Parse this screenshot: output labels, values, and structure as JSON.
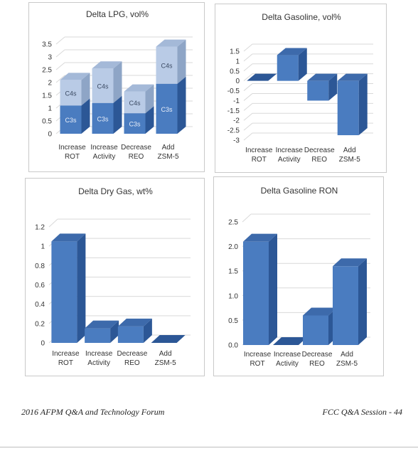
{
  "footer": {
    "left": "2016 AFPM Q&A and Technology Forum",
    "right": "FCC Q&A Session - 44"
  },
  "colors": {
    "bar_front": "#4a7cc0",
    "bar_side": "#2c5796",
    "bar_top": "#3d6aab",
    "c4_front": "#b9cbe6",
    "c4_side": "#8ea5c6",
    "c4_top": "#a4b9d8",
    "grid": "#d9d9d9",
    "text": "#333333"
  },
  "chart_data": [
    {
      "type": "bar",
      "stacked": true,
      "title": "Delta LPG, vol%",
      "categories": [
        [
          "Increase",
          "ROT"
        ],
        [
          "Increase",
          "Activity"
        ],
        [
          "Decrease",
          "REO"
        ],
        [
          "Add",
          "ZSM-5"
        ]
      ],
      "series": [
        {
          "name": "C3s",
          "values": [
            1.1,
            1.2,
            0.8,
            1.95
          ]
        },
        {
          "name": "C4s",
          "values": [
            1.0,
            1.35,
            0.85,
            1.45
          ]
        }
      ],
      "ylim": [
        0,
        3.5
      ],
      "yticks": [
        0,
        0.5,
        1,
        1.5,
        2,
        2.5,
        3,
        3.5
      ],
      "ytick_labels": [
        "0",
        "0.5",
        "1",
        "1.5",
        "2",
        "2.5",
        "3",
        "3.5"
      ],
      "grid": true
    },
    {
      "type": "bar",
      "title": "Delta Gasoline, vol%",
      "categories": [
        [
          "Increase",
          "ROT"
        ],
        [
          "Increase",
          "Activity"
        ],
        [
          "Decrease",
          "REO"
        ],
        [
          "Add",
          "ZSM-5"
        ]
      ],
      "values": [
        0.0,
        1.3,
        -1.0,
        -2.75
      ],
      "ylim": [
        -3,
        1.5
      ],
      "yticks": [
        1.5,
        1,
        0.5,
        0,
        -0.5,
        -1,
        -1.5,
        -2,
        -2.5,
        -3
      ],
      "ytick_labels": [
        "1.5",
        "1",
        "0.5",
        "0",
        "-0.5",
        "-1",
        "-1.5",
        "-2",
        "-2.5",
        "-3"
      ],
      "grid": true
    },
    {
      "type": "bar",
      "title": "Delta Dry Gas, wt%",
      "categories": [
        [
          "Increase",
          "ROT"
        ],
        [
          "Increase",
          "Activity"
        ],
        [
          "Decrease",
          "REO"
        ],
        [
          "Add",
          "ZSM-5"
        ]
      ],
      "values": [
        1.05,
        0.15,
        0.17,
        0.0
      ],
      "ylim": [
        0,
        1.2
      ],
      "yticks": [
        0,
        0.2,
        0.4,
        0.6,
        0.8,
        1,
        1.2
      ],
      "ytick_labels": [
        "0",
        "0.2",
        "0.4",
        "0.6",
        "0.8",
        "1",
        "1.2"
      ],
      "grid": true
    },
    {
      "type": "bar",
      "title": "Delta Gasoline RON",
      "categories": [
        [
          "Increase",
          "ROT"
        ],
        [
          "Increase",
          "Activity"
        ],
        [
          "Decrease",
          "REO"
        ],
        [
          "Add",
          "ZSM-5"
        ]
      ],
      "values": [
        2.1,
        0.0,
        0.6,
        1.6
      ],
      "ylim": [
        0,
        2.5
      ],
      "yticks": [
        0,
        0.5,
        1,
        1.5,
        2,
        2.5
      ],
      "ytick_labels": [
        "0.0",
        "0.5",
        "1.0",
        "1.5",
        "2.0",
        "2.5"
      ],
      "grid": true
    }
  ]
}
